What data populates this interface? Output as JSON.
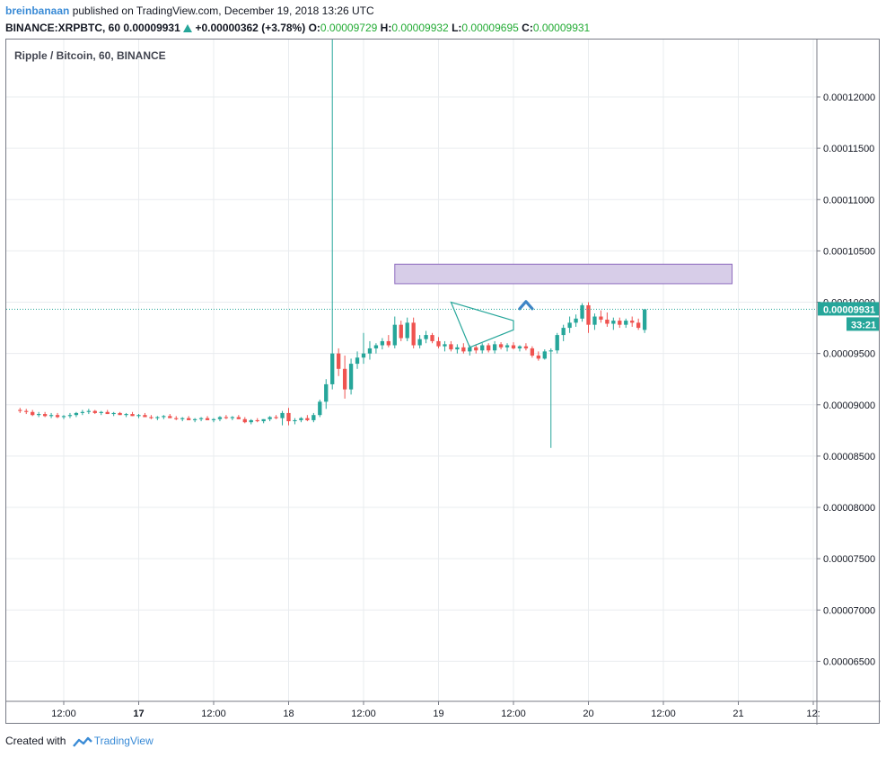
{
  "header": {
    "author": "breinbanaan",
    "published_text": "published on TradingView.com, December 19, 2018 13:26 UTC",
    "symbol": "BINANCE:XRPBTC, 60",
    "last": "0.00009931",
    "change": "+0.00000362 (+3.78%)",
    "o_label": "O:",
    "o_value": "0.00009729",
    "h_label": "H:",
    "h_value": "0.00009932",
    "l_label": "L:",
    "l_value": "0.00009695",
    "c_label": "C:",
    "c_value": "0.00009931"
  },
  "footer": {
    "created_with": "Created with",
    "brand": "TradingView"
  },
  "colors": {
    "up": "#26a69a",
    "down": "#ef5350",
    "zone_fill": "#d7cde8",
    "zone_border": "#8e6bbf",
    "arrow": "#3d85c6",
    "grid": "#e9ecef",
    "price_line": "#26a69a"
  },
  "chart_data": {
    "type": "candlestick",
    "title": "Ripple / Bitcoin, 60, BINANCE",
    "ylim": [
      6.11e-05,
      0.0001256
    ],
    "y_ticks": [
      "0.00012000",
      "0.00011500",
      "0.00011000",
      "0.00010500",
      "0.00010000",
      "0.00009500",
      "0.00009000",
      "0.00008500",
      "0.00008000",
      "0.00007500",
      "0.00007000",
      "0.00006500"
    ],
    "x_ticks": [
      "12:00",
      "17",
      "12:00",
      "18",
      "12:00",
      "19",
      "12:00",
      "20",
      "12:00",
      "21",
      "12:"
    ],
    "x_ticks_bold": [
      false,
      true,
      false,
      false,
      false,
      false,
      false,
      false,
      false,
      false,
      false
    ],
    "last_price_label": "0.00009931",
    "countdown_label": "33:21",
    "last_price": 9.931e-05,
    "candles_start": "2018-12-16 05:00",
    "candle_interval_hours": 1,
    "x_axis_end": "2018-12-21 12:00",
    "candles": [
      [
        8.95e-05,
        8.97e-05,
        8.92e-05,
        8.94e-05
      ],
      [
        8.94e-05,
        8.96e-05,
        8.91e-05,
        8.93e-05
      ],
      [
        8.93e-05,
        8.95e-05,
        8.89e-05,
        8.9e-05
      ],
      [
        8.9e-05,
        8.93e-05,
        8.88e-05,
        8.91e-05
      ],
      [
        8.91e-05,
        8.93e-05,
        8.88e-05,
        8.89e-05
      ],
      [
        8.89e-05,
        8.92e-05,
        8.87e-05,
        8.9e-05
      ],
      [
        8.9e-05,
        8.92e-05,
        8.87e-05,
        8.88e-05
      ],
      [
        8.88e-05,
        8.9e-05,
        8.86e-05,
        8.89e-05
      ],
      [
        8.89e-05,
        8.92e-05,
        8.87e-05,
        8.9e-05
      ],
      [
        8.9e-05,
        8.93e-05,
        8.88e-05,
        8.92e-05
      ],
      [
        8.92e-05,
        8.95e-05,
        8.9e-05,
        8.93e-05
      ],
      [
        8.93e-05,
        8.96e-05,
        8.91e-05,
        8.94e-05
      ],
      [
        8.94e-05,
        8.95e-05,
        8.91e-05,
        8.92e-05
      ],
      [
        8.92e-05,
        8.94e-05,
        8.9e-05,
        8.93e-05
      ],
      [
        8.93e-05,
        8.95e-05,
        8.91e-05,
        8.91e-05
      ],
      [
        8.91e-05,
        8.93e-05,
        8.89e-05,
        8.92e-05
      ],
      [
        8.92e-05,
        8.93e-05,
        8.9e-05,
        8.9e-05
      ],
      [
        8.9e-05,
        8.92e-05,
        8.88e-05,
        8.91e-05
      ],
      [
        8.91e-05,
        8.93e-05,
        8.89e-05,
        8.89e-05
      ],
      [
        8.89e-05,
        8.91e-05,
        8.87e-05,
        8.9e-05
      ],
      [
        8.9e-05,
        8.92e-05,
        8.88e-05,
        8.88e-05
      ],
      [
        8.88e-05,
        8.9e-05,
        8.86e-05,
        8.87e-05
      ],
      [
        8.87e-05,
        8.89e-05,
        8.85e-05,
        8.88e-05
      ],
      [
        8.88e-05,
        8.9e-05,
        8.86e-05,
        8.89e-05
      ],
      [
        8.89e-05,
        8.91e-05,
        8.87e-05,
        8.87e-05
      ],
      [
        8.87e-05,
        8.89e-05,
        8.85e-05,
        8.86e-05
      ],
      [
        8.86e-05,
        8.88e-05,
        8.84e-05,
        8.87e-05
      ],
      [
        8.87e-05,
        8.89e-05,
        8.85e-05,
        8.85e-05
      ],
      [
        8.85e-05,
        8.87e-05,
        8.83e-05,
        8.86e-05
      ],
      [
        8.86e-05,
        8.88e-05,
        8.84e-05,
        8.87e-05
      ],
      [
        8.87e-05,
        8.89e-05,
        8.85e-05,
        8.85e-05
      ],
      [
        8.85e-05,
        8.87e-05,
        8.83e-05,
        8.86e-05
      ],
      [
        8.86e-05,
        8.89e-05,
        8.84e-05,
        8.88e-05
      ],
      [
        8.88e-05,
        8.9e-05,
        8.86e-05,
        8.87e-05
      ],
      [
        8.87e-05,
        8.89e-05,
        8.85e-05,
        8.88e-05
      ],
      [
        8.88e-05,
        8.9e-05,
        8.86e-05,
        8.86e-05
      ],
      [
        8.86e-05,
        8.88e-05,
        8.82e-05,
        8.83e-05
      ],
      [
        8.83e-05,
        8.86e-05,
        8.81e-05,
        8.85e-05
      ],
      [
        8.85e-05,
        8.87e-05,
        8.83e-05,
        8.84e-05
      ],
      [
        8.84e-05,
        8.86e-05,
        8.82e-05,
        8.86e-05
      ],
      [
        8.86e-05,
        8.89e-05,
        8.84e-05,
        8.88e-05
      ],
      [
        8.88e-05,
        8.9e-05,
        8.86e-05,
        8.87e-05
      ],
      [
        8.87e-05,
        8.94e-05,
        8.8e-05,
        8.92e-05
      ],
      [
        8.92e-05,
        8.97e-05,
        8.8e-05,
        8.84e-05
      ],
      [
        8.84e-05,
        8.87e-05,
        8.81e-05,
        8.85e-05
      ],
      [
        8.85e-05,
        8.88e-05,
        8.83e-05,
        8.87e-05
      ],
      [
        8.87e-05,
        8.9e-05,
        8.84e-05,
        8.85e-05
      ],
      [
        8.85e-05,
        8.92e-05,
        8.83e-05,
        8.9e-05
      ],
      [
        8.9e-05,
        9.05e-05,
        8.88e-05,
        9.03e-05
      ],
      [
        9.03e-05,
        9.25e-05,
        8.96e-05,
        9.2e-05
      ],
      [
        9.2e-05,
        0.000955,
        9.15e-05,
        9.5e-05
      ],
      [
        9.5e-05,
        9.55e-05,
        9.28e-05,
        9.35e-05
      ],
      [
        9.35e-05,
        9.48e-05,
        9.06e-05,
        9.15e-05
      ],
      [
        9.15e-05,
        9.45e-05,
        9.1e-05,
        9.4e-05
      ],
      [
        9.4e-05,
        9.52e-05,
        9.35e-05,
        9.46e-05
      ],
      [
        9.46e-05,
        9.7e-05,
        9.4e-05,
        9.5e-05
      ],
      [
        9.5e-05,
        9.62e-05,
        9.44e-05,
        9.55e-05
      ],
      [
        9.55e-05,
        9.6e-05,
        9.5e-05,
        9.58e-05
      ],
      [
        9.58e-05,
        9.65e-05,
        9.54e-05,
        9.62e-05
      ],
      [
        9.62e-05,
        9.68e-05,
        9.56e-05,
        9.58e-05
      ],
      [
        9.58e-05,
        9.86e-05,
        9.55e-05,
        9.78e-05
      ],
      [
        9.78e-05,
        9.82e-05,
        9.62e-05,
        9.65e-05
      ],
      [
        9.65e-05,
        9.85e-05,
        9.62e-05,
        9.8e-05
      ],
      [
        9.8e-05,
        9.85e-05,
        9.55e-05,
        9.58e-05
      ],
      [
        9.58e-05,
        9.68e-05,
        9.55e-05,
        9.64e-05
      ],
      [
        9.64e-05,
        9.72e-05,
        9.6e-05,
        9.68e-05
      ],
      [
        9.68e-05,
        9.7e-05,
        9.6e-05,
        9.62e-05
      ],
      [
        9.62e-05,
        9.66e-05,
        9.55e-05,
        9.57e-05
      ],
      [
        9.57e-05,
        9.62e-05,
        9.52e-05,
        9.59e-05
      ],
      [
        9.59e-05,
        9.62e-05,
        9.52e-05,
        9.54e-05
      ],
      [
        9.54e-05,
        9.59e-05,
        9.5e-05,
        9.56e-05
      ],
      [
        9.56e-05,
        9.6e-05,
        9.5e-05,
        9.52e-05
      ],
      [
        9.52e-05,
        9.58e-05,
        9.48e-05,
        9.56e-05
      ],
      [
        9.56e-05,
        9.59e-05,
        9.5e-05,
        9.53e-05
      ],
      [
        9.53e-05,
        9.6e-05,
        9.5e-05,
        9.58e-05
      ],
      [
        9.58e-05,
        9.6e-05,
        9.51e-05,
        9.53e-05
      ],
      [
        9.53e-05,
        9.62e-05,
        9.5e-05,
        9.59e-05
      ],
      [
        9.59e-05,
        9.61e-05,
        9.54e-05,
        9.56e-05
      ],
      [
        9.56e-05,
        9.6e-05,
        9.52e-05,
        9.58e-05
      ],
      [
        9.58e-05,
        9.61e-05,
        9.54e-05,
        9.55e-05
      ],
      [
        9.55e-05,
        9.58e-05,
        9.52e-05,
        9.57e-05
      ],
      [
        9.57e-05,
        9.6e-05,
        9.53e-05,
        9.55e-05
      ],
      [
        9.55e-05,
        9.57e-05,
        9.46e-05,
        9.48e-05
      ],
      [
        9.48e-05,
        9.52e-05,
        9.43e-05,
        9.45e-05
      ],
      [
        9.45e-05,
        9.54e-05,
        9.44e-05,
        9.52e-05
      ],
      [
        9.52e-05,
        9.55e-05,
        8.58e-05,
        9.53e-05
      ],
      [
        9.53e-05,
        9.7e-05,
        9.5e-05,
        9.68e-05
      ],
      [
        9.68e-05,
        9.78e-05,
        9.62e-05,
        9.75e-05
      ],
      [
        9.75e-05,
        9.86e-05,
        9.7e-05,
        9.8e-05
      ],
      [
        9.8e-05,
        9.88e-05,
        9.76e-05,
        9.84e-05
      ],
      [
        9.84e-05,
        9.99e-05,
        9.81e-05,
        9.97e-05
      ],
      [
        9.97e-05,
        0.0001,
        9.7e-05,
        9.78e-05
      ],
      [
        9.78e-05,
        9.89e-05,
        9.73e-05,
        9.86e-05
      ],
      [
        9.86e-05,
        9.92e-05,
        9.8e-05,
        9.83e-05
      ],
      [
        9.83e-05,
        9.9e-05,
        9.76e-05,
        9.79e-05
      ],
      [
        9.79e-05,
        9.85e-05,
        9.73e-05,
        9.82e-05
      ],
      [
        9.82e-05,
        9.85e-05,
        9.75e-05,
        9.78e-05
      ],
      [
        9.78e-05,
        9.84e-05,
        9.75e-05,
        9.82e-05
      ],
      [
        9.82e-05,
        9.86e-05,
        9.76e-05,
        9.8e-05
      ],
      [
        9.8e-05,
        9.84e-05,
        9.73e-05,
        9.75e-05
      ],
      [
        9.73e-05,
        9.93e-05,
        9.7e-05,
        9.93e-05
      ]
    ],
    "annotations": [
      {
        "type": "rectangle",
        "from": "2018-12-18 17:00",
        "to": "2018-12-20 23:00",
        "top": 0.0001037,
        "bottom": 0.0001018
      },
      {
        "type": "triangle",
        "points": [
          [
            "2018-12-19 02:00",
            0.0001
          ],
          [
            "2018-12-19 12:00",
            9.82e-05
          ],
          [
            "2018-12-19 12:00",
            9.73e-05
          ],
          [
            "2018-12-19 05:00",
            9.56e-05
          ]
        ]
      },
      {
        "type": "arrow_up",
        "time": "2018-12-19 14:00",
        "value": 9.98e-05
      }
    ]
  }
}
